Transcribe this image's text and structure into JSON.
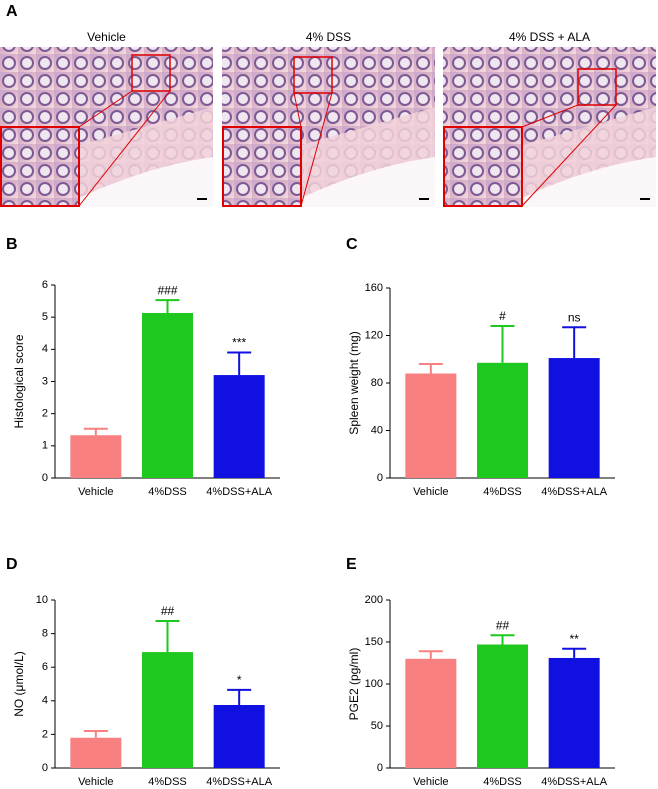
{
  "histology": {
    "panel": "A",
    "titles": [
      "Vehicle",
      "4% DSS",
      "4% DSS + ALA"
    ]
  },
  "chart_data": [
    {
      "type": "bar",
      "panel": "B",
      "ylabel": "Histological score",
      "categories": [
        "Vehicle",
        "4%DSS",
        "4%DSS+ALA"
      ],
      "values": [
        1.33,
        5.13,
        3.2
      ],
      "errors": [
        0.2,
        0.4,
        0.7
      ],
      "annotations": [
        null,
        "###",
        "***"
      ],
      "colors": [
        "#f88080",
        "#1ec81e",
        "#1010e0"
      ],
      "ylim": [
        0,
        6
      ],
      "yticks": [
        0,
        1,
        2,
        3,
        4,
        5,
        6
      ]
    },
    {
      "type": "bar",
      "panel": "C",
      "ylabel": "Spleen weight (mg)",
      "categories": [
        "Vehicle",
        "4%DSS",
        "4%DSS+ALA"
      ],
      "values": [
        88,
        97,
        101
      ],
      "errors": [
        8,
        31,
        26
      ],
      "annotations": [
        null,
        "#",
        "ns"
      ],
      "colors": [
        "#f88080",
        "#1ec81e",
        "#1010e0"
      ],
      "ylim": [
        0,
        160
      ],
      "yticks": [
        0,
        40,
        80,
        120,
        160
      ]
    },
    {
      "type": "bar",
      "panel": "D",
      "ylabel": "NO (μmol/L)",
      "categories": [
        "Vehicle",
        "4%DSS",
        "4%DSS+ALA"
      ],
      "values": [
        1.8,
        6.9,
        3.75
      ],
      "errors": [
        0.4,
        1.85,
        0.9
      ],
      "annotations": [
        null,
        "##",
        "*"
      ],
      "colors": [
        "#f88080",
        "#1ec81e",
        "#1010e0"
      ],
      "ylim": [
        0,
        10
      ],
      "yticks": [
        0,
        2,
        4,
        6,
        8,
        10
      ]
    },
    {
      "type": "bar",
      "panel": "E",
      "ylabel": "PGE2 (pg/ml)",
      "categories": [
        "Vehicle",
        "4%DSS",
        "4%DSS+ALA"
      ],
      "values": [
        130,
        147,
        131
      ],
      "errors": [
        9,
        11,
        11
      ],
      "annotations": [
        null,
        "##",
        "**"
      ],
      "colors": [
        "#f88080",
        "#1ec81e",
        "#1010e0"
      ],
      "ylim": [
        0,
        200
      ],
      "yticks": [
        0,
        50,
        100,
        150,
        200
      ]
    }
  ]
}
